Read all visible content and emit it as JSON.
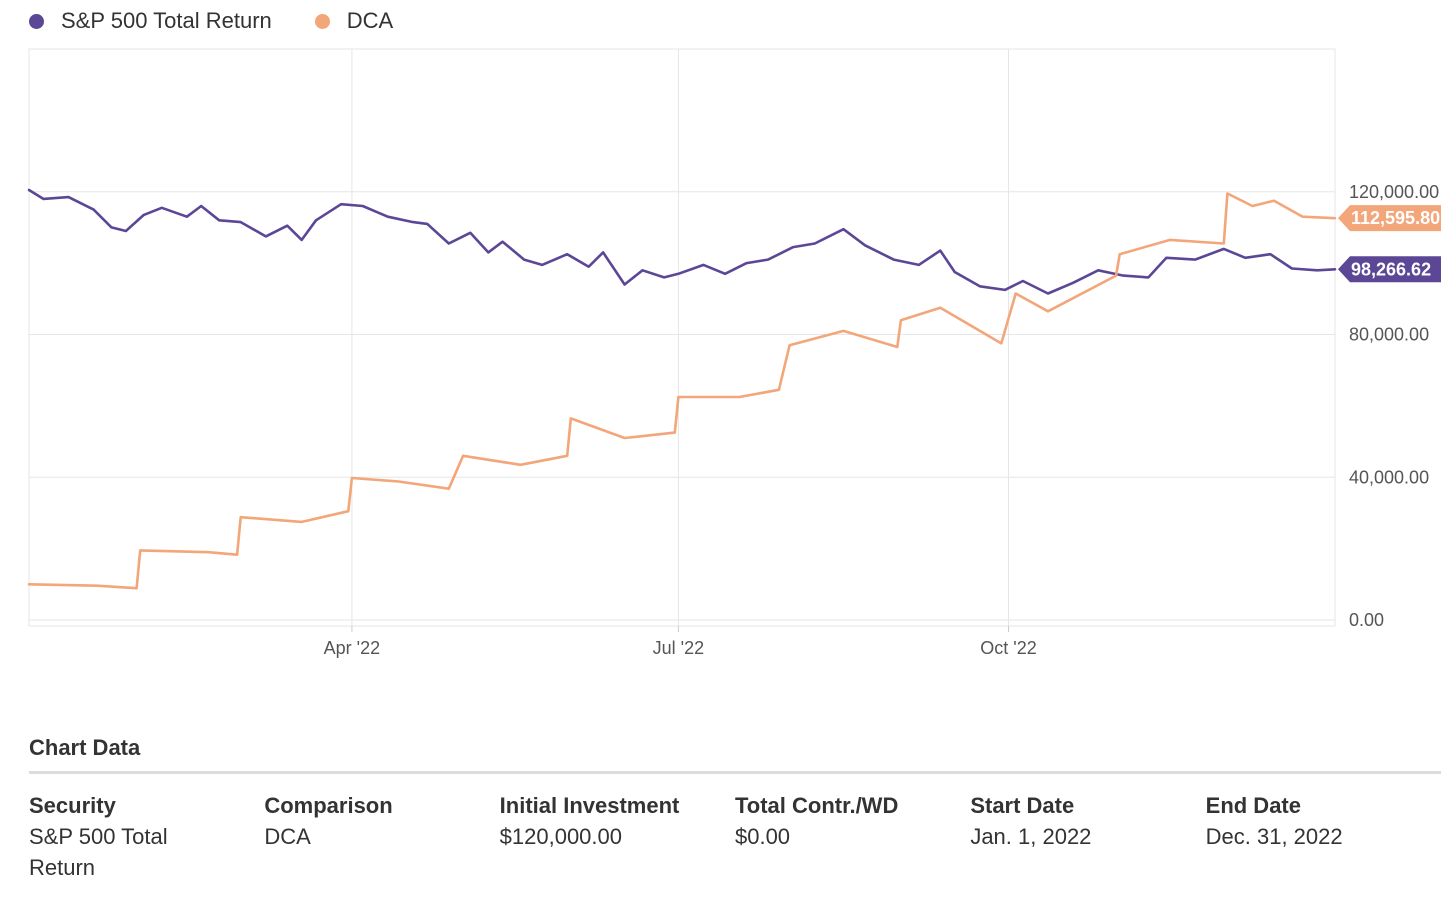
{
  "chart_data": {
    "type": "line",
    "x_axis": {
      "type": "date",
      "range": [
        "2022-01-01",
        "2022-12-31"
      ],
      "tick_labels": [
        "Apr '22",
        "Jul '22",
        "Oct '22"
      ]
    },
    "y_axis": {
      "position": "right",
      "range": [
        0,
        160000
      ],
      "tick_labels": [
        "0.00",
        "40,000.00",
        "80,000.00",
        "120,000.00"
      ],
      "ticks": [
        0,
        40000,
        80000,
        120000
      ]
    },
    "grid": true,
    "legend_position": "top-left",
    "series": [
      {
        "name": "S&P 500 Total Return",
        "color": "#5b4796",
        "last_value_label": "98,266.62",
        "points": [
          [
            "2022-01-01",
            120500
          ],
          [
            "2022-01-05",
            118000
          ],
          [
            "2022-01-12",
            118500
          ],
          [
            "2022-01-19",
            115000
          ],
          [
            "2022-01-24",
            110000
          ],
          [
            "2022-01-28",
            109000
          ],
          [
            "2022-02-02",
            113500
          ],
          [
            "2022-02-07",
            115500
          ],
          [
            "2022-02-14",
            113000
          ],
          [
            "2022-02-18",
            116000
          ],
          [
            "2022-02-23",
            112000
          ],
          [
            "2022-03-01",
            111500
          ],
          [
            "2022-03-08",
            107500
          ],
          [
            "2022-03-14",
            110500
          ],
          [
            "2022-03-18",
            106500
          ],
          [
            "2022-03-22",
            112000
          ],
          [
            "2022-03-29",
            116500
          ],
          [
            "2022-04-04",
            116000
          ],
          [
            "2022-04-11",
            113000
          ],
          [
            "2022-04-18",
            111500
          ],
          [
            "2022-04-22",
            111000
          ],
          [
            "2022-04-28",
            105500
          ],
          [
            "2022-05-04",
            108500
          ],
          [
            "2022-05-09",
            103000
          ],
          [
            "2022-05-13",
            106000
          ],
          [
            "2022-05-19",
            101000
          ],
          [
            "2022-05-24",
            99500
          ],
          [
            "2022-05-31",
            102500
          ],
          [
            "2022-06-06",
            99000
          ],
          [
            "2022-06-10",
            103000
          ],
          [
            "2022-06-16",
            94000
          ],
          [
            "2022-06-21",
            98000
          ],
          [
            "2022-06-27",
            96000
          ],
          [
            "2022-07-01",
            97000
          ],
          [
            "2022-07-08",
            99500
          ],
          [
            "2022-07-14",
            97000
          ],
          [
            "2022-07-20",
            100000
          ],
          [
            "2022-07-26",
            101000
          ],
          [
            "2022-08-02",
            104500
          ],
          [
            "2022-08-08",
            105500
          ],
          [
            "2022-08-16",
            109500
          ],
          [
            "2022-08-22",
            105000
          ],
          [
            "2022-08-30",
            101000
          ],
          [
            "2022-09-06",
            99500
          ],
          [
            "2022-09-12",
            103500
          ],
          [
            "2022-09-16",
            97500
          ],
          [
            "2022-09-23",
            93500
          ],
          [
            "2022-09-30",
            92500
          ],
          [
            "2022-10-05",
            95000
          ],
          [
            "2022-10-12",
            91500
          ],
          [
            "2022-10-19",
            94500
          ],
          [
            "2022-10-26",
            98000
          ],
          [
            "2022-11-02",
            96500
          ],
          [
            "2022-11-09",
            96000
          ],
          [
            "2022-11-14",
            101500
          ],
          [
            "2022-11-22",
            101000
          ],
          [
            "2022-11-30",
            104000
          ],
          [
            "2022-12-06",
            101500
          ],
          [
            "2022-12-13",
            102500
          ],
          [
            "2022-12-19",
            98500
          ],
          [
            "2022-12-26",
            98000
          ],
          [
            "2022-12-31",
            98266.62
          ]
        ]
      },
      {
        "name": "DCA",
        "color": "#f2a67a",
        "last_value_label": "112,595.80",
        "points": [
          [
            "2022-01-01",
            10000
          ],
          [
            "2022-01-20",
            9600
          ],
          [
            "2022-01-31",
            8900
          ],
          [
            "2022-02-01",
            19500
          ],
          [
            "2022-02-20",
            19000
          ],
          [
            "2022-02-28",
            18300
          ],
          [
            "2022-03-01",
            28800
          ],
          [
            "2022-03-18",
            27500
          ],
          [
            "2022-03-31",
            30500
          ],
          [
            "2022-04-01",
            39800
          ],
          [
            "2022-04-14",
            38800
          ],
          [
            "2022-04-28",
            36800
          ],
          [
            "2022-05-02",
            46000
          ],
          [
            "2022-05-18",
            43500
          ],
          [
            "2022-05-31",
            46000
          ],
          [
            "2022-06-01",
            56500
          ],
          [
            "2022-06-16",
            51000
          ],
          [
            "2022-06-30",
            52500
          ],
          [
            "2022-07-01",
            62500
          ],
          [
            "2022-07-18",
            62500
          ],
          [
            "2022-07-29",
            64500
          ],
          [
            "2022-08-01",
            77000
          ],
          [
            "2022-08-16",
            81000
          ],
          [
            "2022-08-31",
            76500
          ],
          [
            "2022-09-01",
            84000
          ],
          [
            "2022-09-12",
            87500
          ],
          [
            "2022-09-29",
            77500
          ],
          [
            "2022-10-03",
            91500
          ],
          [
            "2022-10-12",
            86500
          ],
          [
            "2022-10-31",
            96500
          ],
          [
            "2022-11-01",
            102500
          ],
          [
            "2022-11-15",
            106500
          ],
          [
            "2022-11-30",
            105500
          ],
          [
            "2022-12-01",
            119500
          ],
          [
            "2022-12-08",
            116000
          ],
          [
            "2022-12-14",
            117500
          ],
          [
            "2022-12-22",
            113000
          ],
          [
            "2022-12-31",
            112595.8
          ]
        ]
      }
    ]
  },
  "table": {
    "title": "Chart Data",
    "headers": [
      "Security",
      "Comparison",
      "Initial Investment",
      "Total Contr./WD",
      "Start Date",
      "End Date"
    ],
    "values": [
      "S&P 500 Total Return",
      "DCA",
      "$120,000.00",
      "$0.00",
      "Jan. 1, 2022",
      "Dec. 31, 2022"
    ]
  }
}
